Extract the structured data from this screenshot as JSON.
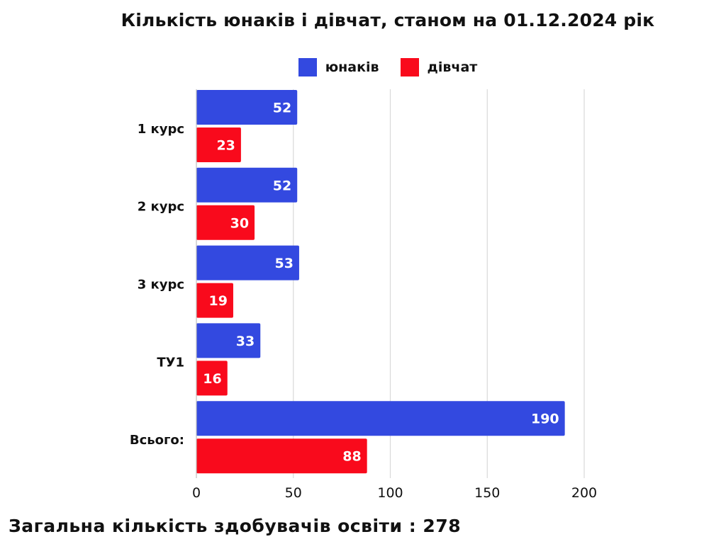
{
  "chart_data": {
    "type": "bar",
    "orientation": "horizontal",
    "title": "Кількість юнаків і дівчат, станом на 01.12.2024 рік",
    "categories": [
      "1 курс",
      "2 курс",
      "3 курс",
      "ТУ1",
      "Всього:"
    ],
    "series": [
      {
        "name": "юнаків",
        "color": "#3349E0",
        "values": [
          52,
          52,
          53,
          33,
          190
        ]
      },
      {
        "name": "дівчат",
        "color": "#F90A1C",
        "values": [
          23,
          30,
          19,
          16,
          88
        ]
      }
    ],
    "xlim": [
      0,
      200
    ],
    "xticks": [
      0,
      50,
      100,
      150,
      200
    ],
    "xtick_labels": [
      "0",
      "50",
      "100",
      "150",
      "200"
    ],
    "grid": true,
    "legend_position": "top"
  },
  "footer": {
    "text": "Загальна кількість здобувачів освіти : 278"
  }
}
